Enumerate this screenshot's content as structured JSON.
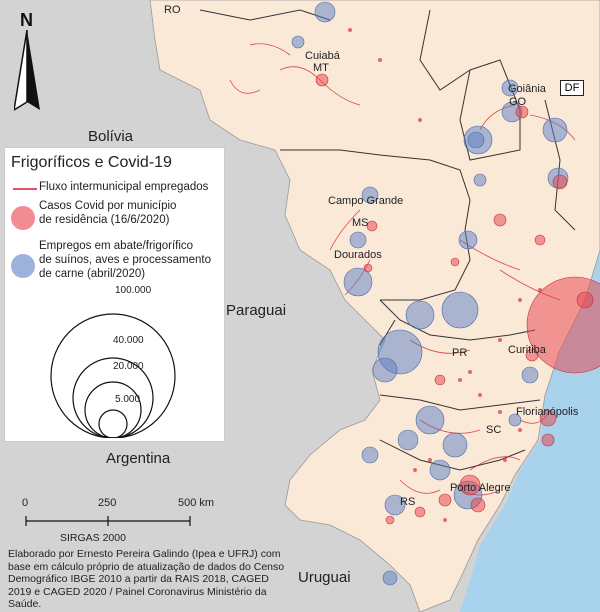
{
  "legend": {
    "title": "Frigoríficos e Covid-19",
    "flow_label": "Fluxo intermunicipal empregados",
    "covid_label_1": "Casos Covid por município",
    "covid_label_2": "de residência (16/6/2020)",
    "jobs_label_1": "Empregos em abate/frigorífico",
    "jobs_label_2": "de suínos, aves e processamento",
    "jobs_label_3": "de carne (abril/2020)",
    "size_values": [
      "100.000",
      "40.000",
      "20.000",
      "5.000"
    ]
  },
  "colors": {
    "land": "#fbe9d8",
    "neighbor": "#d3d3d3",
    "ocean": "#a9d3ec",
    "covid": "#e8404a",
    "jobs": "#5a7fc4",
    "flow": "#cf1f2b"
  },
  "north": {
    "letter": "N"
  },
  "countries": {
    "bolivia": "Bolívia",
    "paraguai": "Paraguai",
    "argentina": "Argentina",
    "uruguai": "Uruguai"
  },
  "places": {
    "ro": "RO",
    "cuiaba": "Cuiabá",
    "mt": "MT",
    "goiania": "Goiânia",
    "go": "GO",
    "df": "DF",
    "campo_grande": "Campo Grande",
    "ms": "MS",
    "dourados": "Dourados",
    "pr": "PR",
    "curitiba": "Curitiba",
    "sc": "SC",
    "florianopolis": "Florianópolis",
    "rs": "RS",
    "porto_alegre": "Porto Alegre"
  },
  "scale": {
    "ticks": [
      "0",
      "250",
      "500 km"
    ],
    "srs": "SIRGAS 2000"
  },
  "credit": "Elaborado por Ernesto Pereira Galindo (Ipea e UFRJ) com base em cálculo próprio de atualização de dados do Censo Demográfico IBGE 2010 a partir da RAIS 2018, CAGED 2019 e CAGED 2020 / Painel Coronavirus Ministério da Saúde."
}
